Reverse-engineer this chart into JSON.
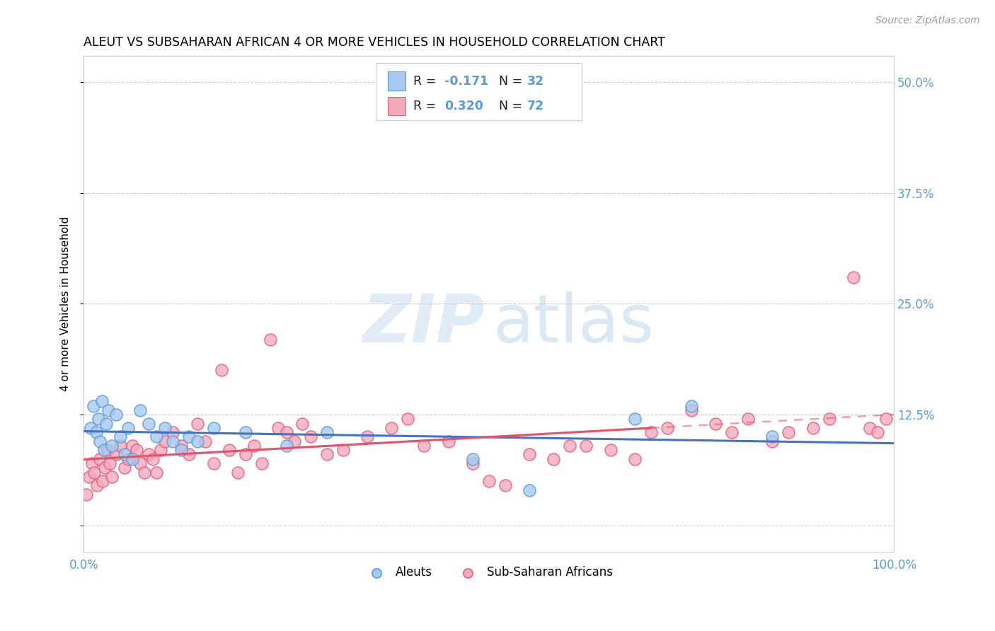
{
  "title": "ALEUT VS SUBSAHARAN AFRICAN 4 OR MORE VEHICLES IN HOUSEHOLD CORRELATION CHART",
  "source": "Source: ZipAtlas.com",
  "ylabel": "4 or more Vehicles in Household",
  "xlim": [
    0,
    100
  ],
  "ylim": [
    -3,
    53
  ],
  "xtick_positions": [
    0,
    12.5,
    25,
    37.5,
    50,
    62.5,
    75,
    87.5,
    100
  ],
  "xtick_labels": [
    "0.0%",
    "",
    "",
    "",
    "",
    "",
    "",
    "",
    "100.0%"
  ],
  "ytick_positions": [
    0,
    12.5,
    25,
    37.5,
    50
  ],
  "ytick_labels_right": [
    "",
    "12.5%",
    "25.0%",
    "37.5%",
    "50.0%"
  ],
  "blue_fill": "#A8C8F0",
  "blue_edge": "#5B9BD5",
  "pink_fill": "#F4AABB",
  "pink_edge": "#E06080",
  "blue_line": "#4472C4",
  "pink_line": "#E8506A",
  "grid_color": "#CCCCCC",
  "tick_label_color": "#5B9BD5",
  "aleut_x": [
    0.8,
    1.2,
    1.5,
    1.8,
    2.0,
    2.2,
    2.5,
    2.8,
    3.0,
    3.5,
    4.0,
    4.5,
    5.0,
    5.5,
    6.0,
    7.0,
    8.0,
    9.0,
    10.0,
    11.0,
    12.0,
    13.0,
    14.0,
    16.0,
    20.0,
    25.0,
    30.0,
    48.0,
    55.0,
    68.0,
    75.0,
    85.0
  ],
  "aleut_y": [
    11.0,
    13.5,
    10.5,
    12.0,
    9.5,
    14.0,
    8.5,
    11.5,
    13.0,
    9.0,
    12.5,
    10.0,
    8.0,
    11.0,
    7.5,
    13.0,
    11.5,
    10.0,
    11.0,
    9.5,
    8.5,
    10.0,
    9.5,
    11.0,
    10.5,
    9.0,
    10.5,
    7.5,
    4.0,
    12.0,
    13.5,
    10.0
  ],
  "pink_x": [
    0.3,
    0.7,
    1.0,
    1.3,
    1.6,
    2.0,
    2.3,
    2.6,
    2.9,
    3.2,
    3.5,
    4.0,
    4.5,
    5.0,
    5.5,
    6.0,
    6.5,
    7.0,
    7.5,
    8.0,
    8.5,
    9.0,
    9.5,
    10.0,
    11.0,
    12.0,
    13.0,
    14.0,
    15.0,
    16.0,
    17.0,
    18.0,
    19.0,
    20.0,
    21.0,
    22.0,
    23.0,
    24.0,
    25.0,
    26.0,
    27.0,
    28.0,
    30.0,
    32.0,
    35.0,
    38.0,
    40.0,
    42.0,
    45.0,
    48.0,
    50.0,
    52.0,
    55.0,
    58.0,
    60.0,
    62.0,
    65.0,
    68.0,
    70.0,
    72.0,
    75.0,
    78.0,
    80.0,
    82.0,
    85.0,
    87.0,
    90.0,
    92.0,
    95.0,
    97.0,
    98.0,
    99.0
  ],
  "pink_y": [
    3.5,
    5.5,
    7.0,
    6.0,
    4.5,
    7.5,
    5.0,
    6.5,
    8.5,
    7.0,
    5.5,
    8.0,
    9.0,
    6.5,
    7.5,
    9.0,
    8.5,
    7.0,
    6.0,
    8.0,
    7.5,
    6.0,
    8.5,
    9.5,
    10.5,
    9.0,
    8.0,
    11.5,
    9.5,
    7.0,
    17.5,
    8.5,
    6.0,
    8.0,
    9.0,
    7.0,
    21.0,
    11.0,
    10.5,
    9.5,
    11.5,
    10.0,
    8.0,
    8.5,
    10.0,
    11.0,
    12.0,
    9.0,
    9.5,
    7.0,
    5.0,
    4.5,
    8.0,
    7.5,
    9.0,
    9.0,
    8.5,
    7.5,
    10.5,
    11.0,
    13.0,
    11.5,
    10.5,
    12.0,
    9.5,
    10.5,
    11.0,
    12.0,
    28.0,
    11.0,
    10.5,
    12.0
  ],
  "watermark_zip_color": "#C8DCF0",
  "watermark_atlas_color": "#B0CCE8"
}
